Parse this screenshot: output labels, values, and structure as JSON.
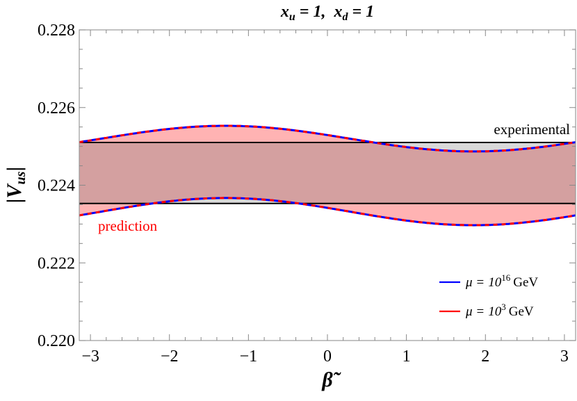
{
  "chart_data": {
    "type": "line",
    "title": "x_u = 1, x_d = 1",
    "title_parts": {
      "a": "x",
      "a_sub": "u",
      "b": "= 1,  ",
      "c": "x",
      "c_sub": "d",
      "d": "= 1"
    },
    "xlabel": "β̃",
    "ylabel": "|V_us|",
    "ylabel_parts": {
      "main": "|V",
      "sub": "us",
      "end": "|"
    },
    "xlim": [
      -3.14159,
      3.14159
    ],
    "ylim": [
      0.22,
      0.228
    ],
    "x_ticks": [
      -3,
      -2,
      -1,
      0,
      1,
      2,
      3
    ],
    "x_tick_labels": [
      "−3",
      "−2",
      "−1",
      "0",
      "1",
      "2",
      "3"
    ],
    "y_ticks": [
      0.22,
      0.222,
      0.224,
      0.226,
      0.228
    ],
    "y_tick_labels": [
      "0.220",
      "0.222",
      "0.224",
      "0.226",
      "0.228"
    ],
    "grid": false,
    "experimental_band": {
      "label": "experimental",
      "lower": 0.22353,
      "upper": 0.2251,
      "color": "#000000",
      "fill": "#d9d9d9"
    },
    "prediction_band": {
      "label": "prediction",
      "color": "#ff0000",
      "fill": "#ffb3b3",
      "upper_curve": {
        "center": 0.2252,
        "amplitude": 0.00033,
        "phase_max_at": -1.29
      },
      "lower_curve": {
        "center": 0.22332,
        "amplitude": 0.00035,
        "phase_max_at": -1.29
      }
    },
    "overlap_fill": "#d4a0a0",
    "series": [
      {
        "name": "μ = 10^16 GeV",
        "color": "#0000ff",
        "style": "solid"
      },
      {
        "name": "μ = 10^3 GeV",
        "color": "#ff0000",
        "style": "dashed"
      }
    ],
    "legend": [
      {
        "mu": "μ",
        "eq": "=",
        "base": "10",
        "exp": "16",
        "unit": "GeV",
        "color": "#0000ff"
      },
      {
        "mu": "μ",
        "eq": "=",
        "base": "10",
        "exp": "3",
        "unit": "GeV",
        "color": "#ff0000"
      }
    ],
    "legend_position": "lower right"
  }
}
